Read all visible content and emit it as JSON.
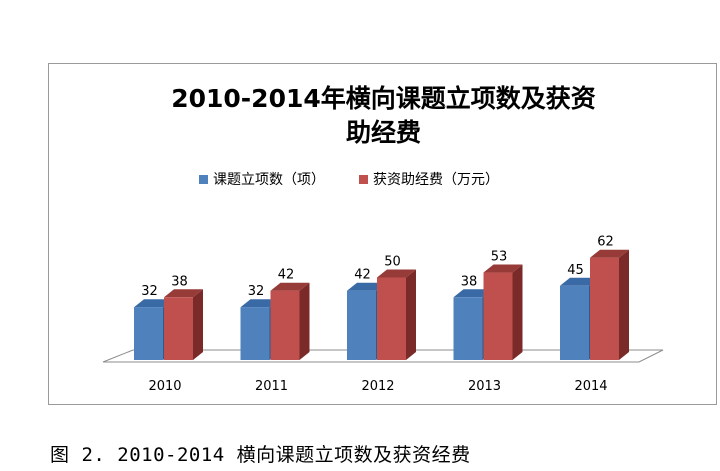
{
  "caption": "图 2. 2010-2014 横向课题立项数及获资经费",
  "chart_data": {
    "type": "bar",
    "style": "3d-clustered-column",
    "title": "2010-2014年横向课题立项数及获资助经费",
    "title_lines": [
      "2010-2014年横向课题立项数及获资",
      "助经费"
    ],
    "categories": [
      "2010",
      "2011",
      "2012",
      "2013",
      "2014"
    ],
    "series": [
      {
        "name": "课题立项数（项）",
        "values": [
          32,
          32,
          42,
          38,
          45
        ],
        "color": "#4f81bd",
        "side_color": "#2e5a8c",
        "top_color": "#3a6aa5"
      },
      {
        "name": "获资助经费（万元）",
        "values": [
          38,
          42,
          50,
          53,
          62
        ],
        "color": "#c0504d",
        "side_color": "#7a2b29",
        "top_color": "#963b38"
      }
    ],
    "legend_position": "top",
    "grid": false,
    "ylim": [
      0,
      62
    ]
  }
}
